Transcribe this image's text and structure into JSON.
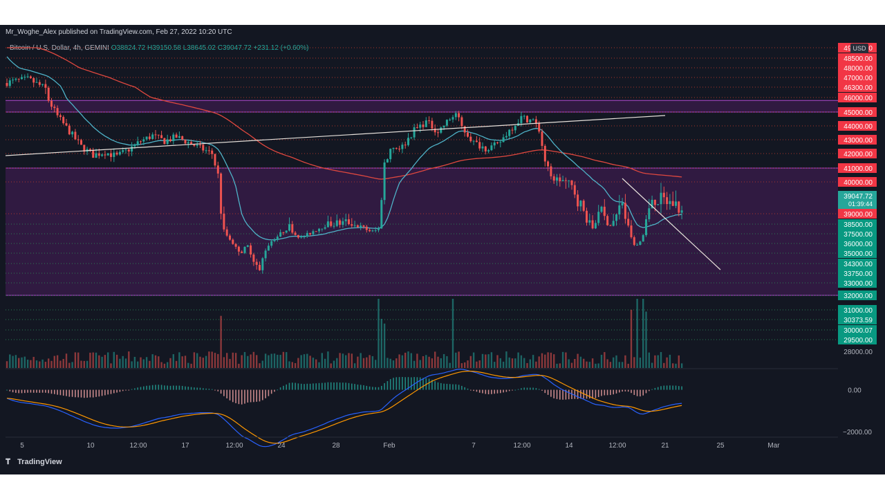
{
  "header": {
    "published_line": "Mr_Woghe_Alex published on TradingView.com, Feb 27, 2022 10:20 UTC",
    "symbol": "Bitcoin / U.S. Dollar, 4h, GEMINI",
    "ohlc": "O38824.72 H39150.58 L38645.02 C39047.72 +231.12 (+0.60%)"
  },
  "brand": {
    "name": "TradingView"
  },
  "currency_badge": "USD",
  "colors": {
    "background": "#131722",
    "up": "#26a69a",
    "down": "#ef5350",
    "red_label": "#f23645",
    "green_label": "#089981",
    "zone": "#9c27b0",
    "ema_fast": "#4fb3c8",
    "ema_slow": "#e0483f",
    "trendline": "#e8e2dc",
    "macd_line": "#2962ff",
    "signal_line": "#ff9800"
  },
  "chart_data": {
    "type": "candlestick",
    "x_ticks": [
      "5",
      "10",
      "12:00",
      "17",
      "12:00",
      "24",
      "28",
      "Feb",
      "7",
      "12:00",
      "14",
      "12:00",
      "21",
      "25",
      "Mar"
    ],
    "y_ticks": [
      "49000.00",
      "48500.00",
      "48000.00",
      "47000.00",
      "46300.00",
      "46000.00",
      "45000.00",
      "44000.00",
      "43000.00",
      "42000.00",
      "41000.00",
      "40000.00",
      "39000.00",
      "38500.00",
      "37500.00",
      "36000.00",
      "35000.00",
      "34300.00",
      "33750.00",
      "33000.00",
      "32000.00",
      "31000.00",
      "30373.59",
      "30000.07",
      "29500.00",
      "28000.00"
    ],
    "red_levels": [
      "49000.00",
      "48500.00",
      "48000.00",
      "47000.00",
      "46300.00",
      "46000.00",
      "45000.00",
      "44000.00",
      "43000.00",
      "42000.00",
      "41000.00",
      "40000.00",
      "39000.00"
    ],
    "green_levels": [
      "38500.00",
      "37500.00",
      "36000.00",
      "35000.00",
      "34300.00",
      "33750.00",
      "33000.00",
      "32000.00",
      "31000.00",
      "30373.59",
      "30000.07",
      "29500.00"
    ],
    "gray_levels": [
      "28000.00"
    ],
    "current_price": "39047.72",
    "countdown": "01:39:44",
    "macd_ticks": [
      "0.00",
      "−2000.00"
    ],
    "zones": [
      {
        "from": 45000,
        "to": 45800
      },
      {
        "from": 32000,
        "to": 41000
      }
    ],
    "price_path": [
      [
        0,
        46600
      ],
      [
        8,
        46900
      ],
      [
        14,
        46200
      ],
      [
        18,
        44700
      ],
      [
        22,
        43600
      ],
      [
        26,
        42500
      ],
      [
        30,
        41900
      ],
      [
        34,
        42100
      ],
      [
        38,
        41800
      ],
      [
        42,
        42300
      ],
      [
        46,
        42900
      ],
      [
        50,
        43300
      ],
      [
        54,
        42900
      ],
      [
        58,
        43200
      ],
      [
        62,
        42800
      ],
      [
        66,
        42400
      ],
      [
        70,
        42000
      ],
      [
        72,
        40500
      ],
      [
        74,
        37800
      ],
      [
        76,
        36700
      ],
      [
        78,
        35500
      ],
      [
        80,
        35200
      ],
      [
        82,
        35700
      ],
      [
        84,
        34600
      ],
      [
        86,
        33800
      ],
      [
        88,
        35400
      ],
      [
        90,
        36400
      ],
      [
        92,
        37100
      ],
      [
        94,
        37800
      ],
      [
        96,
        38300
      ],
      [
        98,
        37400
      ],
      [
        100,
        36900
      ],
      [
        104,
        37800
      ],
      [
        108,
        38400
      ],
      [
        112,
        38500
      ],
      [
        116,
        38600
      ],
      [
        120,
        38200
      ],
      [
        124,
        37700
      ],
      [
        126,
        38000
      ],
      [
        128,
        41200
      ],
      [
        130,
        42400
      ],
      [
        134,
        42500
      ],
      [
        138,
        43700
      ],
      [
        142,
        44300
      ],
      [
        146,
        43600
      ],
      [
        150,
        44500
      ],
      [
        152,
        44900
      ],
      [
        154,
        43900
      ],
      [
        158,
        42800
      ],
      [
        162,
        42400
      ],
      [
        166,
        42600
      ],
      [
        170,
        43700
      ],
      [
        174,
        44600
      ],
      [
        178,
        44400
      ],
      [
        180,
        43700
      ],
      [
        182,
        41500
      ],
      [
        184,
        40300
      ],
      [
        188,
        40100
      ],
      [
        192,
        39700
      ],
      [
        196,
        38800
      ],
      [
        198,
        38100
      ],
      [
        200,
        39200
      ],
      [
        204,
        38400
      ],
      [
        206,
        38900
      ],
      [
        208,
        39400
      ],
      [
        210,
        38200
      ],
      [
        212,
        35900
      ],
      [
        214,
        36300
      ],
      [
        216,
        38600
      ],
      [
        218,
        39500
      ],
      [
        222,
        39400
      ],
      [
        226,
        39300
      ],
      [
        228,
        39047.72
      ]
    ],
    "candle_count": 228,
    "x_range": [
      0,
      280
    ],
    "y_range": [
      28500,
      49000
    ],
    "macd_range": [
      -2600,
      1000
    ]
  }
}
